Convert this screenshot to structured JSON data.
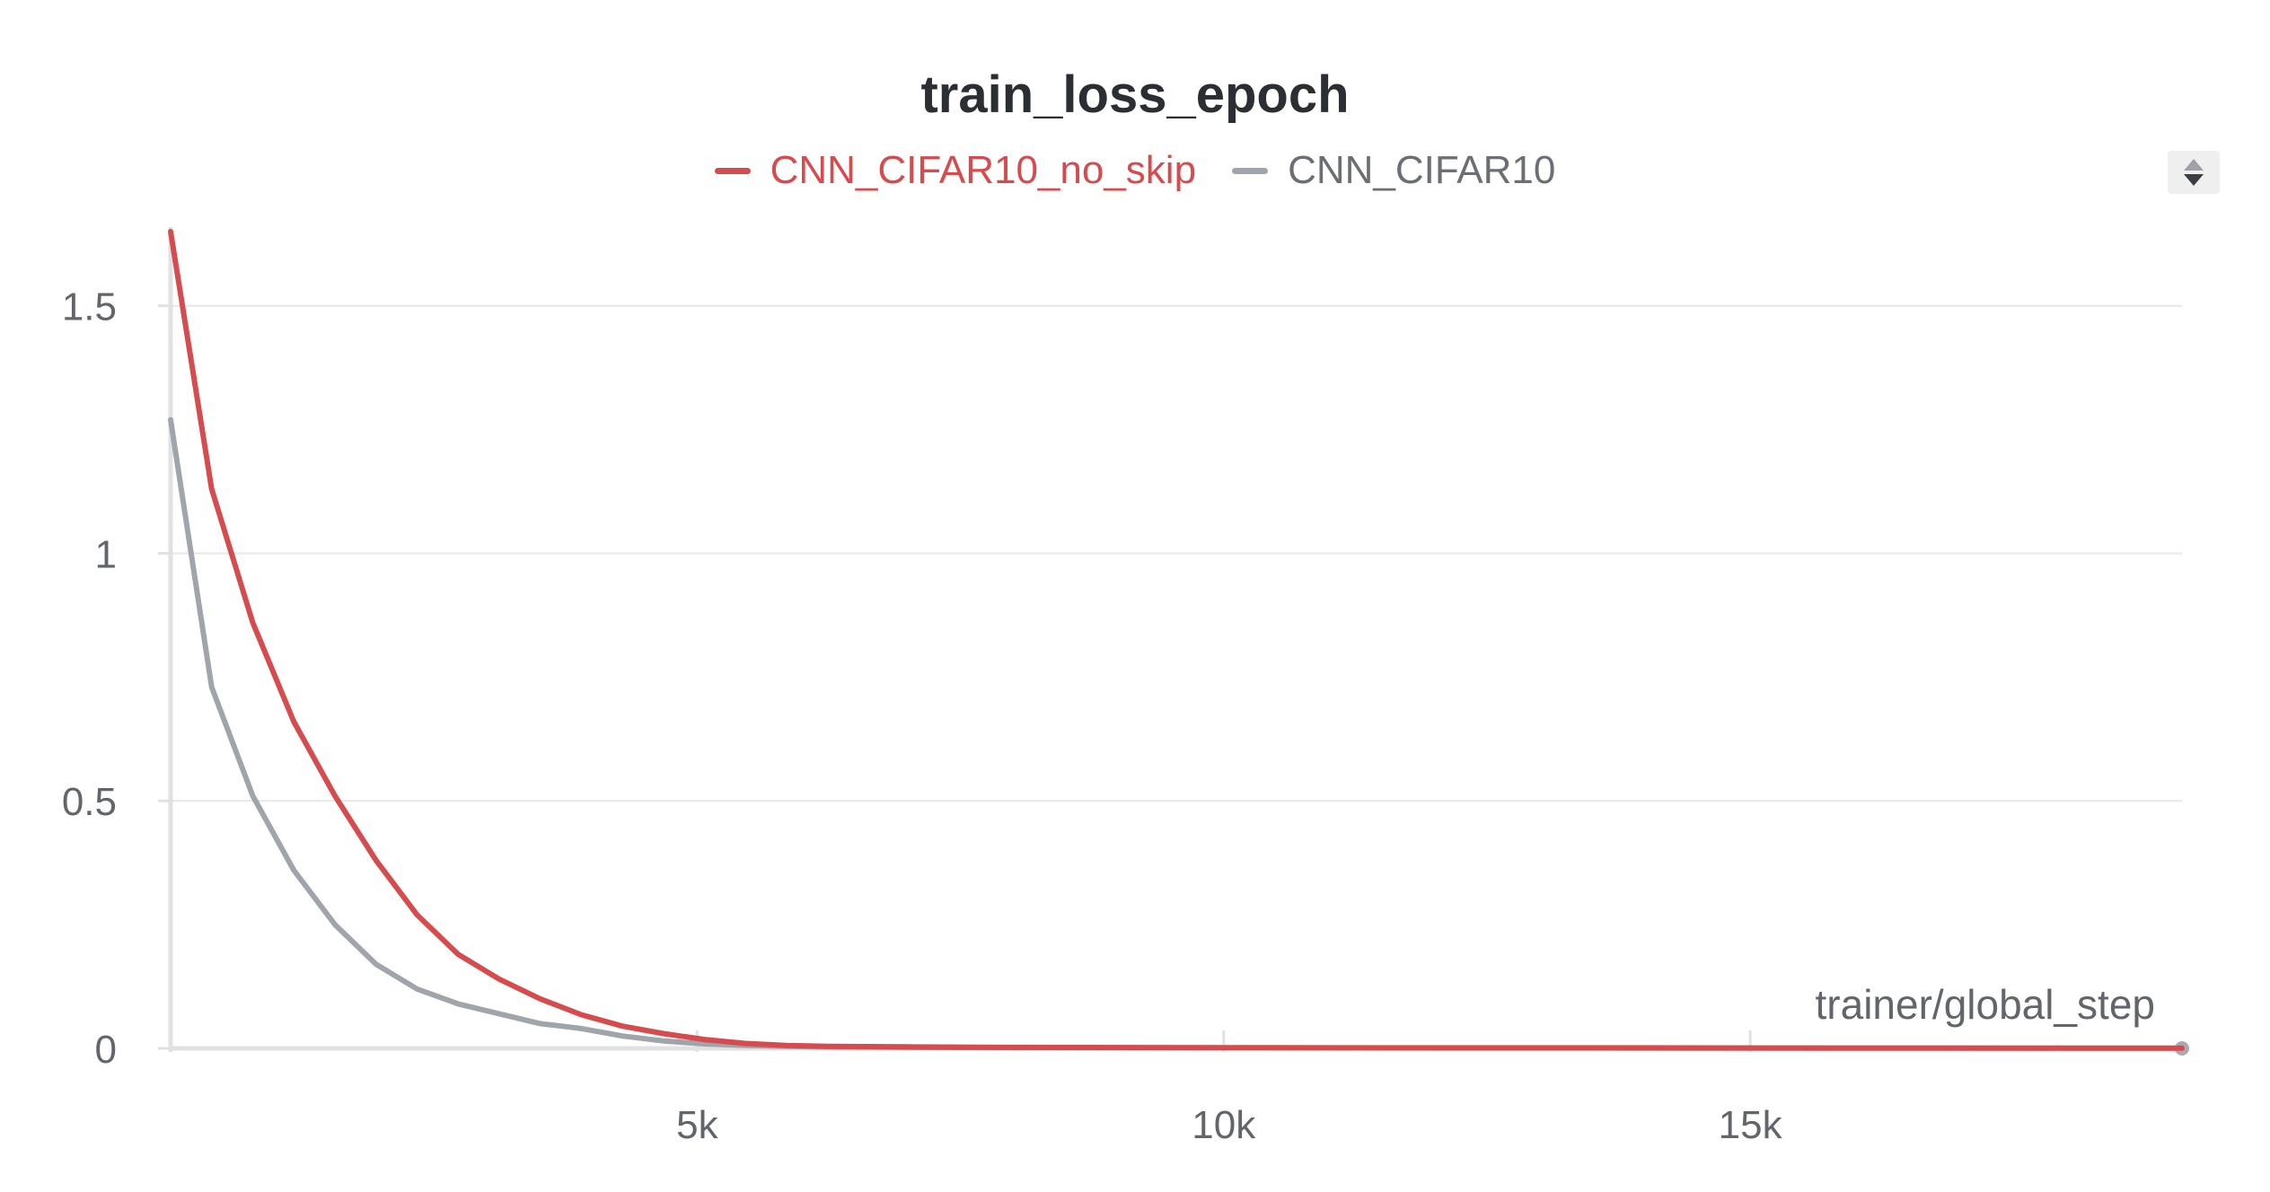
{
  "chart_data": {
    "type": "line",
    "title": "train_loss_epoch",
    "xlabel": "trainer/global_step",
    "ylabel": "",
    "xlim": [
      0,
      19100
    ],
    "ylim": [
      0,
      1.65
    ],
    "x_ticks": [
      5000,
      10000,
      15000
    ],
    "x_tick_labels": [
      "5k",
      "10k",
      "15k"
    ],
    "y_ticks": [
      0,
      0.5,
      1,
      1.5
    ],
    "y_tick_labels": [
      "0",
      "0.5",
      "1",
      "1.5"
    ],
    "grid": true,
    "legend_position": "top-center",
    "series": [
      {
        "name": "CNN_CIFAR10_no_skip",
        "color": "#d64c4e",
        "x": [
          0,
          390,
          780,
          1170,
          1560,
          1950,
          2340,
          2730,
          3120,
          3510,
          3900,
          4290,
          4680,
          5070,
          5460,
          5850,
          6240,
          7000,
          8000,
          10000,
          12000,
          14000,
          16000,
          17000,
          18000,
          19100
        ],
        "y": [
          1.65,
          1.13,
          0.86,
          0.66,
          0.51,
          0.38,
          0.27,
          0.19,
          0.14,
          0.1,
          0.068,
          0.045,
          0.03,
          0.018,
          0.01,
          0.006,
          0.004,
          0.003,
          0.002,
          0.0015,
          0.001,
          0.001,
          0.0008,
          0.0008,
          0.0006,
          0.0005
        ]
      },
      {
        "name": "CNN_CIFAR10",
        "color": "#a0a5ab",
        "x": [
          0,
          390,
          780,
          1170,
          1560,
          1950,
          2340,
          2730,
          3120,
          3510,
          3900,
          4290,
          4680,
          5070,
          5460,
          5850,
          6240,
          7000,
          8000,
          10000,
          12000,
          14000,
          16000,
          17000,
          18000,
          19100
        ],
        "y": [
          1.27,
          0.73,
          0.51,
          0.36,
          0.25,
          0.17,
          0.12,
          0.09,
          0.07,
          0.05,
          0.04,
          0.025,
          0.015,
          0.009,
          0.006,
          0.004,
          0.003,
          0.002,
          0.0015,
          0.001,
          0.0008,
          0.0006,
          0.0005,
          0.0005,
          0.0004,
          0.0003
        ]
      }
    ]
  }
}
